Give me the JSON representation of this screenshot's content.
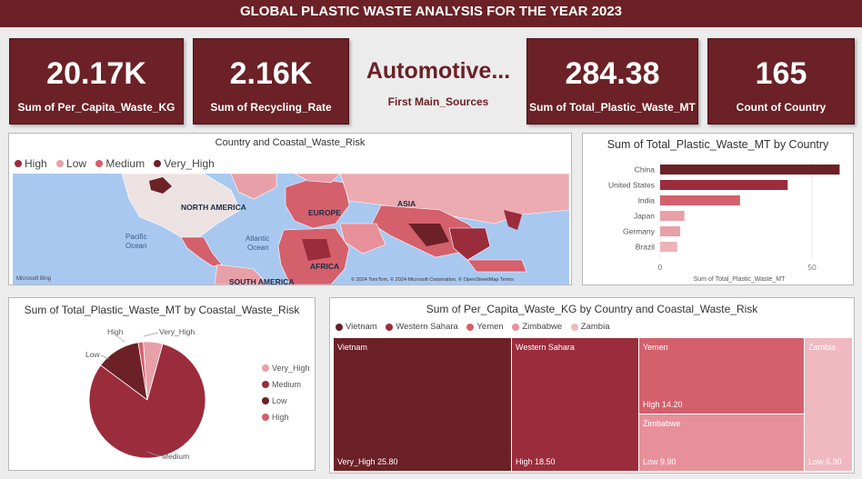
{
  "header": {
    "title": "GLOBAL PLASTIC WASTE ANALYSIS FOR THE YEAR 2023"
  },
  "kpis": [
    {
      "value": "20.17K",
      "label": "Sum of Per_Capita_Waste_KG"
    },
    {
      "value": "2.16K",
      "label": "Sum of Recycling_Rate"
    },
    {
      "value": "Automotive...",
      "label": "First Main_Sources"
    },
    {
      "value": "284.38",
      "label": "Sum of Total_Plastic_Waste_MT"
    },
    {
      "value": "165",
      "label": "Count of Country"
    }
  ],
  "map": {
    "title": "Country and Coastal_Waste_Risk",
    "legend": [
      {
        "label": "High",
        "color": "#9b2c3c"
      },
      {
        "label": "Low",
        "color": "#e8a0a8"
      },
      {
        "label": "Medium",
        "color": "#d4606c"
      },
      {
        "label": "Very_High",
        "color": "#6b2126"
      }
    ],
    "labels": {
      "north_america": "NORTH AMERICA",
      "europe": "EUROPE",
      "asia": "ASIA",
      "africa": "AFRICA",
      "south_america": "SOUTH AMERICA",
      "pacific": "Pacific\nOcean",
      "pacific1": "Pacific",
      "pacific2": "Ocean",
      "atlantic1": "Atlantic",
      "atlantic2": "Ocean"
    },
    "bing": "Microsoft Bing",
    "copyright": "© 2024 TomTom, © 2024 Microsoft Corporation, © OpenStreetMap  Terms"
  },
  "bar_chart": {
    "title": "Sum of Total_Plastic_Waste_MT by Country",
    "axis_title": "Sum of Total_Plastic_Waste_MT",
    "ticks": [
      "0",
      "50"
    ],
    "color": "#6b2126"
  },
  "pie_chart": {
    "title": "Sum of Total_Plastic_Waste_MT by Coastal_Waste_Risk",
    "legend": [
      {
        "label": "Very_High",
        "color": "#e8a0a8"
      },
      {
        "label": "Medium",
        "color": "#9b2c3c"
      },
      {
        "label": "Low",
        "color": "#6b2126"
      },
      {
        "label": "High",
        "color": "#d4606c"
      }
    ],
    "slice_labels": {
      "high": "High",
      "very_high": "Very_High",
      "low": "Low",
      "medium": "Medium"
    }
  },
  "treemap": {
    "title": "Sum of Per_Capita_Waste_KG by Country and Coastal_Waste_Risk",
    "legend": [
      {
        "label": "Vietnam",
        "color": "#6b2126"
      },
      {
        "label": "Western Sahara",
        "color": "#9b2c3c"
      },
      {
        "label": "Yemen",
        "color": "#d4606c"
      },
      {
        "label": "Zimbabwe",
        "color": "#e8909a"
      },
      {
        "label": "Zambia",
        "color": "#f0b8bf"
      }
    ],
    "tiles": [
      {
        "name": "Vietnam",
        "risk_value": "Very_High 25.80",
        "color": "#6b2126"
      },
      {
        "name": "Western Sahara",
        "risk_value": "High 18.50",
        "color": "#9b2c3c"
      },
      {
        "name": "Yemen",
        "risk_value": "High 14.20",
        "color": "#d4606c"
      },
      {
        "name": "Zimbabwe",
        "risk_value": "Low 9.90",
        "color": "#e8909a"
      },
      {
        "name": "Zambia",
        "risk_value": "Low 6.90",
        "color": "#f0b8bf"
      }
    ]
  },
  "chart_data": [
    {
      "type": "bar",
      "title": "Sum of Total_Plastic_Waste_MT by Country",
      "orientation": "horizontal",
      "categories": [
        "China",
        "United States",
        "India",
        "Japan",
        "Germany",
        "Brazil"
      ],
      "values": [
        59.1,
        42.0,
        26.3,
        7.99,
        6.6,
        5.6
      ],
      "xlabel": "Sum of Total_Plastic_Waste_MT",
      "xlim": [
        0,
        60
      ]
    },
    {
      "type": "pie",
      "title": "Sum of Total_Plastic_Waste_MT by Coastal_Waste_Risk",
      "categories": [
        "Medium",
        "Low",
        "High",
        "Very_High"
      ],
      "values": [
        230.0,
        35.0,
        4.0,
        15.4
      ]
    }
  ]
}
